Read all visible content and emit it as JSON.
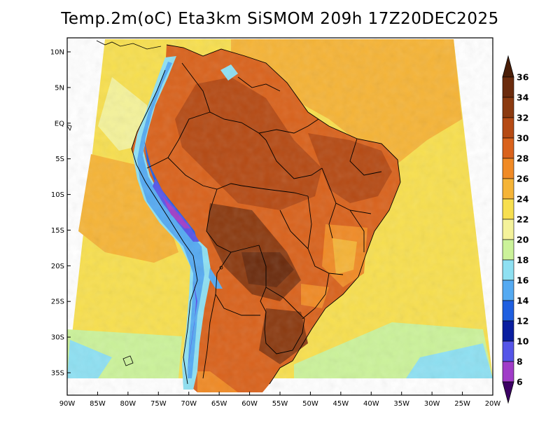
{
  "title": "Temp.2m(oC) Eta3km SiSMOM 209h 17Z20DEC2025",
  "map": {
    "lon_range": [
      -90,
      -20
    ],
    "lat_range": [
      -38,
      11
    ],
    "lat_ticks": [
      {
        "value": 10,
        "label": "10N"
      },
      {
        "value": 5,
        "label": "5N"
      },
      {
        "value": 0,
        "label": "EQ"
      },
      {
        "value": -5,
        "label": "5S"
      },
      {
        "value": -10,
        "label": "10S"
      },
      {
        "value": -15,
        "label": "15S"
      },
      {
        "value": -20,
        "label": "20S"
      },
      {
        "value": -25,
        "label": "25S"
      },
      {
        "value": -30,
        "label": "30S"
      },
      {
        "value": -35,
        "label": "35S"
      }
    ],
    "lon_ticks": [
      {
        "value": -90,
        "label": "90W"
      },
      {
        "value": -85,
        "label": "85W"
      },
      {
        "value": -80,
        "label": "80W"
      },
      {
        "value": -75,
        "label": "75W"
      },
      {
        "value": -70,
        "label": "70W"
      },
      {
        "value": -65,
        "label": "65W"
      },
      {
        "value": -60,
        "label": "60W"
      },
      {
        "value": -55,
        "label": "55W"
      },
      {
        "value": -50,
        "label": "50W"
      },
      {
        "value": -45,
        "label": "45W"
      },
      {
        "value": -40,
        "label": "40W"
      },
      {
        "value": -35,
        "label": "35W"
      },
      {
        "value": -30,
        "label": "30W"
      },
      {
        "value": -25,
        "label": "25W"
      },
      {
        "value": -20,
        "label": "20W"
      }
    ]
  },
  "colorbar": {
    "levels": [
      {
        "label": "36",
        "color": "#6b2b0d"
      },
      {
        "label": "34",
        "color": "#8b3a10"
      },
      {
        "label": "32",
        "color": "#b54a14"
      },
      {
        "label": "30",
        "color": "#d9621c"
      },
      {
        "label": "28",
        "color": "#f08a25"
      },
      {
        "label": "26",
        "color": "#f5b437"
      },
      {
        "label": "24",
        "color": "#f7df4f"
      },
      {
        "label": "22",
        "color": "#f4f29a"
      },
      {
        "label": "20",
        "color": "#cbf29a"
      },
      {
        "label": "18",
        "color": "#8ee0f2"
      },
      {
        "label": "16",
        "color": "#55aaf2"
      },
      {
        "label": "14",
        "color": "#1f5fe0"
      },
      {
        "label": "12",
        "color": "#0a1ea0"
      },
      {
        "label": "10",
        "color": "#5555e8"
      },
      {
        "label": "8",
        "color": "#a03cc8"
      },
      {
        "label": "6",
        "color": "#5a0a8c"
      }
    ],
    "top_arrow_color": "#4a1e08",
    "bottom_arrow_color": "#3c0064"
  }
}
